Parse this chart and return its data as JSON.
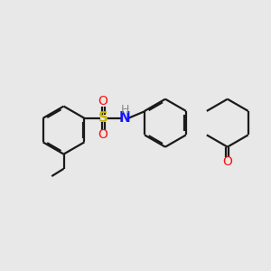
{
  "background_color": "#e8e8e8",
  "bond_color": "#1a1a1a",
  "S_color": "#c8b400",
  "N_color": "#1414ff",
  "O_color": "#ff0d0d",
  "H_color": "#888888",
  "line_width": 1.6,
  "dbo": 0.055,
  "figsize": [
    3.0,
    3.0
  ],
  "dpi": 100,
  "xlim": [
    0,
    10
  ],
  "ylim": [
    0,
    10
  ]
}
